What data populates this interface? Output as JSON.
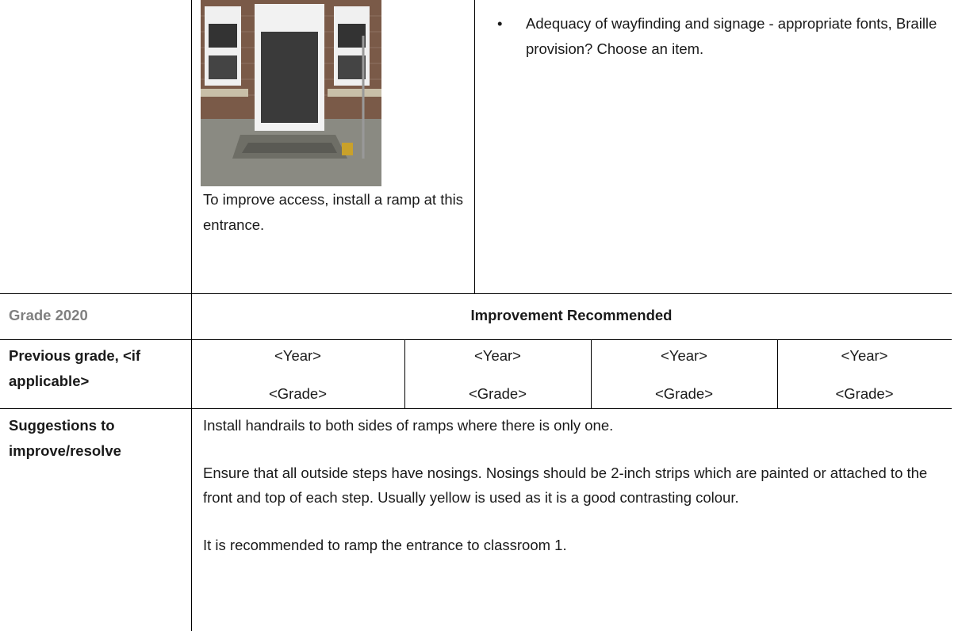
{
  "photo_caption": "To improve access, install a ramp at this entrance.",
  "checklist_item": "Adequacy of wayfinding and signage - appropriate fonts, Braille provision? Choose an item.",
  "grade_row": {
    "label": "Grade 2020",
    "value": "Improvement Recommended"
  },
  "previous_grade": {
    "label": "Previous grade, <if applicable>",
    "entries": [
      {
        "year": "<Year>",
        "grade": "<Grade>"
      },
      {
        "year": "<Year>",
        "grade": "<Grade>"
      },
      {
        "year": "<Year>",
        "grade": "<Grade>"
      },
      {
        "year": "<Year>",
        "grade": "<Grade>"
      }
    ]
  },
  "suggestions": {
    "label": "Suggestions to improve/resolve",
    "paragraphs": [
      "Install handrails to both sides of ramps where there is only one.",
      "Ensure that all outside steps have nosings. Nosings should be 2-inch strips which are painted or attached to the front and top of each step. Usually yellow is used as it is a good contrasting colour.",
      "It is recommended to ramp the entrance to classroom 1."
    ]
  }
}
